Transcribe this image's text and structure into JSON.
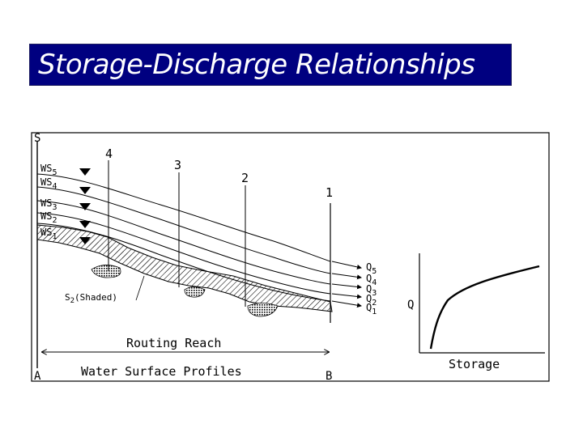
{
  "title": "Storage-Discharge Relationships",
  "profile_figure": {
    "corner_top": "S",
    "corner_bottom_left": "A",
    "corner_bottom_right": "B",
    "stations": [
      "4",
      "3",
      "2",
      "1"
    ],
    "ws_labels": [
      {
        "base": "WS",
        "sub": "5"
      },
      {
        "base": "WS",
        "sub": "4"
      },
      {
        "base": "WS",
        "sub": "3"
      },
      {
        "base": "WS",
        "sub": "2"
      },
      {
        "base": "WS",
        "sub": "1"
      }
    ],
    "q_labels": [
      {
        "base": "Q",
        "sub": "5"
      },
      {
        "base": "Q",
        "sub": "4"
      },
      {
        "base": "Q",
        "sub": "3"
      },
      {
        "base": "Q",
        "sub": "2"
      },
      {
        "base": "Q",
        "sub": "1"
      }
    ],
    "shaded_label_base": "S",
    "shaded_label_sub": "2",
    "shaded_label_suffix": "(Shaded)",
    "routing_reach_label": "Routing Reach",
    "bottom_label": "Water Surface Profiles"
  },
  "storage_plot": {
    "ylabel": "Q",
    "xlabel": "Storage"
  }
}
